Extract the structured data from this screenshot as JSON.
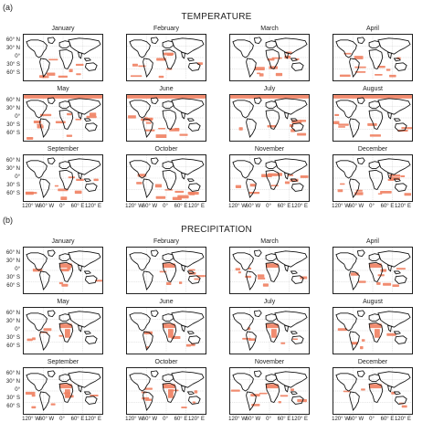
{
  "panels": [
    {
      "letter": "(a)",
      "title": "TEMPERATURE",
      "months": [
        "January",
        "February",
        "March",
        "April",
        "May",
        "June",
        "July",
        "August",
        "September",
        "October",
        "November",
        "December"
      ]
    },
    {
      "letter": "(b)",
      "title": "PRECIPITATION",
      "months": [
        "January",
        "February",
        "March",
        "April",
        "May",
        "June",
        "July",
        "August",
        "September",
        "October",
        "November",
        "December"
      ]
    }
  ],
  "lat_labels": [
    "60° N",
    "30° N",
    "0°",
    "30° S",
    "60° S"
  ],
  "lon_labels": [
    "120° W",
    "60° W",
    "0°",
    "60° E",
    "120° E"
  ],
  "colors": {
    "anomaly": "#f08060",
    "land": "#111111",
    "grid": "#bbbbbb"
  },
  "pattern_notes": {
    "temperature": "scattered orange patches over oceans; strong band along top edge in May–August",
    "precipitation": "orange patches over Africa / Sahara and tropical oceans"
  }
}
